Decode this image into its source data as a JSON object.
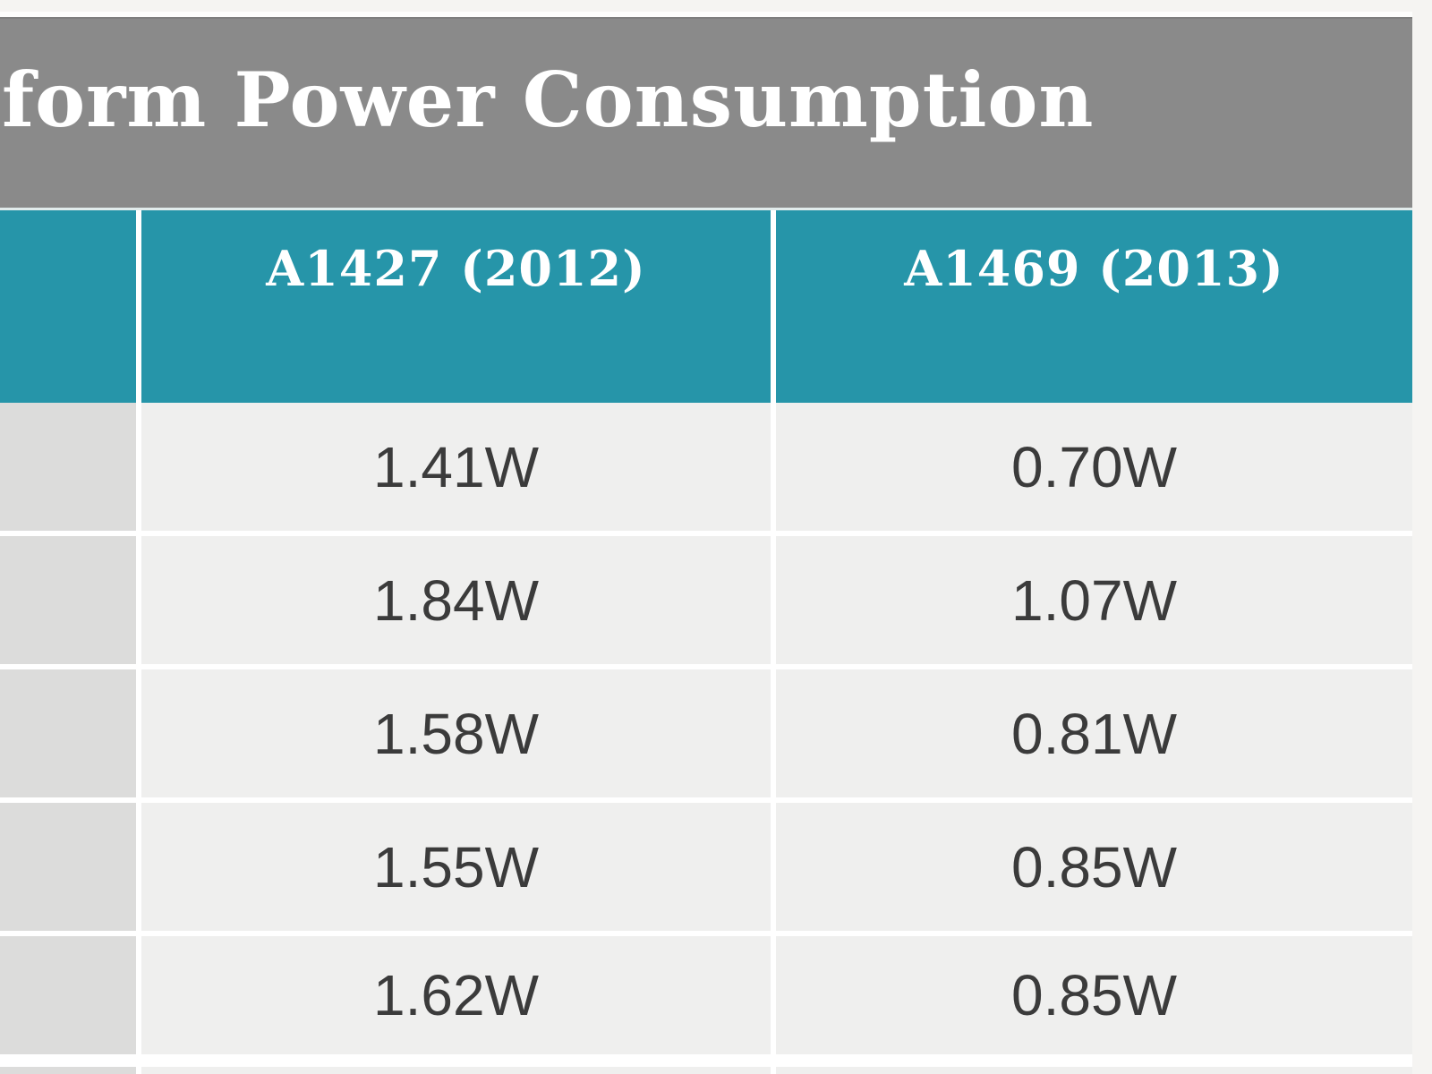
{
  "table": {
    "title": "form Power Consumption",
    "columns": [
      {
        "label": "A1427 (2012)"
      },
      {
        "label": "A1469 (2013)"
      }
    ],
    "rows": [
      [
        "1.41W",
        "0.70W"
      ],
      [
        "1.84W",
        "1.07W"
      ],
      [
        "1.58W",
        "0.81W"
      ],
      [
        "1.55W",
        "0.85W"
      ],
      [
        "1.62W",
        "0.85W"
      ]
    ],
    "colors": {
      "title_bar": "#8a8a8a",
      "header": "#2695a9",
      "header_text": "#ffffff",
      "row_bg": "#efefee",
      "row_header_bg": "#dcdcdb",
      "value_text": "#3b3b3b",
      "divider": "#ffffff",
      "page_bg": "#f5f4f2"
    }
  }
}
